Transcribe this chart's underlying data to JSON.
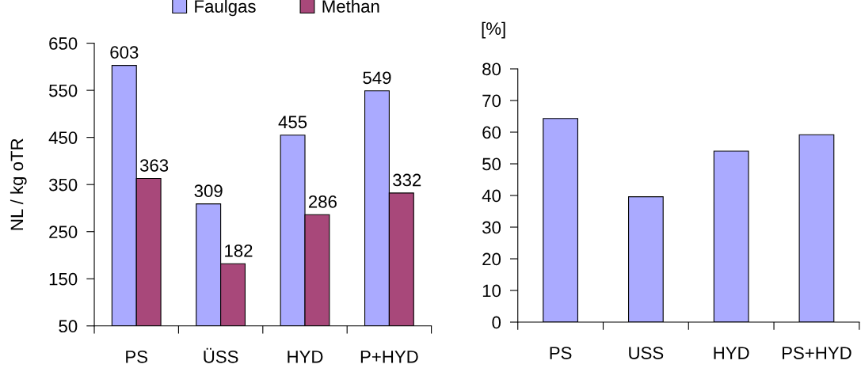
{
  "chart_data": [
    {
      "type": "bar",
      "categories": [
        "PS",
        "ÜSS",
        "HYD",
        "P+HYD"
      ],
      "series": [
        {
          "name": "Faulgas",
          "color": "#aaaaff",
          "values": [
            603,
            309,
            455,
            549
          ]
        },
        {
          "name": "Methan",
          "color": "#a8487a",
          "values": [
            363,
            182,
            286,
            332
          ]
        }
      ],
      "ylabel": "NL / kg oTR",
      "ylim": [
        50,
        650
      ],
      "yticks": [
        50,
        150,
        250,
        350,
        450,
        550,
        650
      ],
      "data_labels": true,
      "legend": "top",
      "grid": false
    },
    {
      "type": "bar",
      "categories": [
        "PS",
        "USS",
        "HYD",
        "PS+HYD"
      ],
      "values": [
        64.3,
        39.6,
        54.0,
        59.2
      ],
      "color": "#aaaaff",
      "ylabel": "[%]",
      "ylim": [
        0,
        80
      ],
      "yticks": [
        0,
        10,
        20,
        30,
        40,
        50,
        60,
        70,
        80
      ],
      "grid": false
    }
  ]
}
